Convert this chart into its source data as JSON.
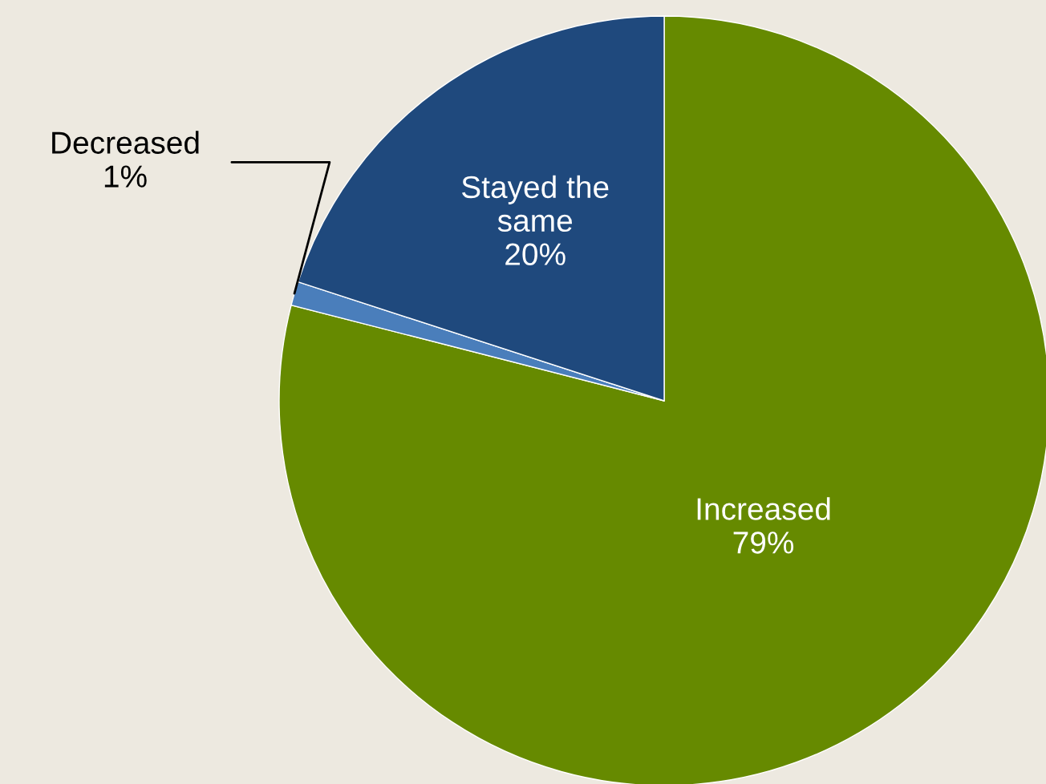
{
  "chart_data": {
    "type": "pie",
    "categories": [
      "Increased",
      "Decreased",
      "Stayed the same"
    ],
    "values": [
      79,
      1,
      20
    ],
    "value_labels": [
      "79%",
      "1%",
      "20%"
    ],
    "colors": [
      "#668a00",
      "#4a7ebb",
      "#1f497d"
    ]
  }
}
